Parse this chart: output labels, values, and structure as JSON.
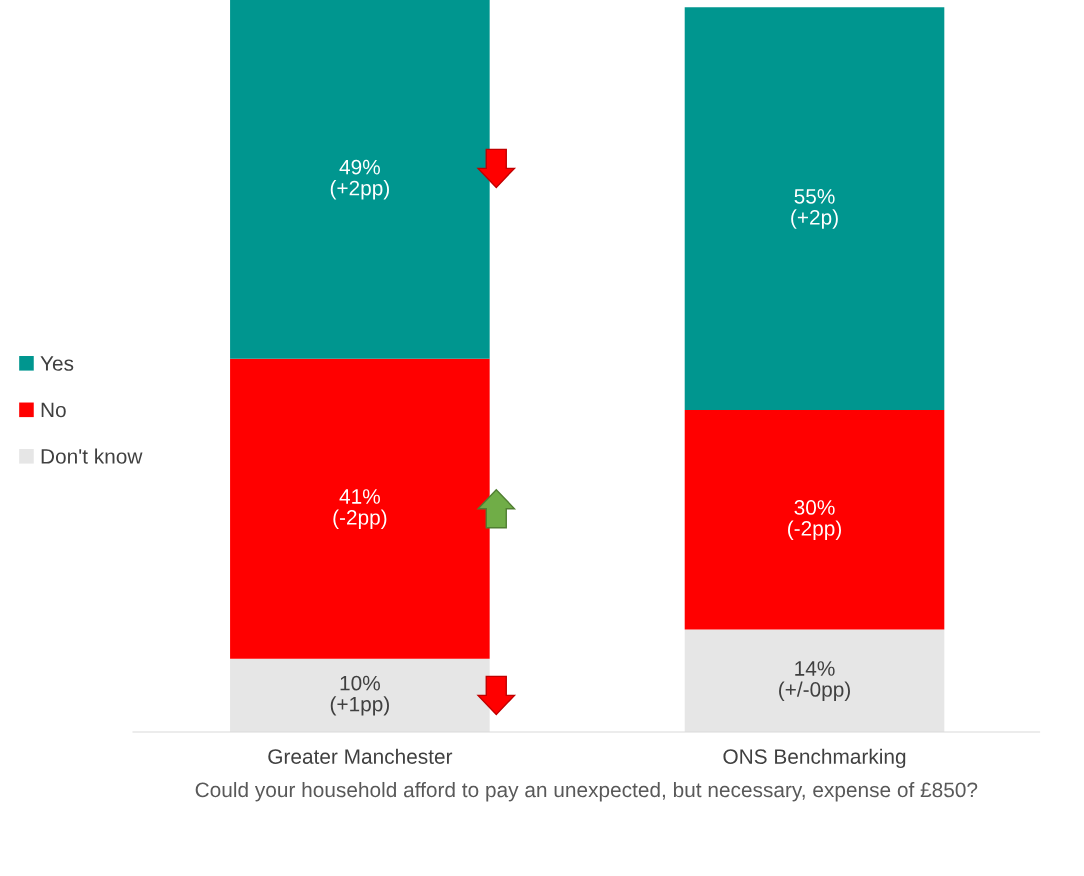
{
  "chart_data": {
    "type": "bar",
    "stacked": true,
    "xlabel": "Could your household afford to pay an unexpected, but necessary, expense of £850?",
    "categories": [
      "Greater Manchester",
      "ONS Benchmarking"
    ],
    "series": [
      {
        "name": "Don't know",
        "color": "#e6e6e6",
        "values": [
          10,
          14
        ],
        "value_labels": [
          "10%\n(+1pp)",
          "14%\n(+/-0pp)"
        ]
      },
      {
        "name": "No",
        "color": "#ff0000",
        "values": [
          41,
          30
        ],
        "value_labels": [
          "41%\n(-2pp)",
          "30%\n(-2pp)"
        ]
      },
      {
        "name": "Yes",
        "color": "#00968f",
        "values": [
          49,
          55
        ],
        "value_labels": [
          "49%\n(+2pp)",
          "55%\n(+2p)"
        ]
      }
    ],
    "ylim": [
      0,
      100
    ],
    "tick_labels": "x",
    "grid": false,
    "legend": "left"
  }
}
